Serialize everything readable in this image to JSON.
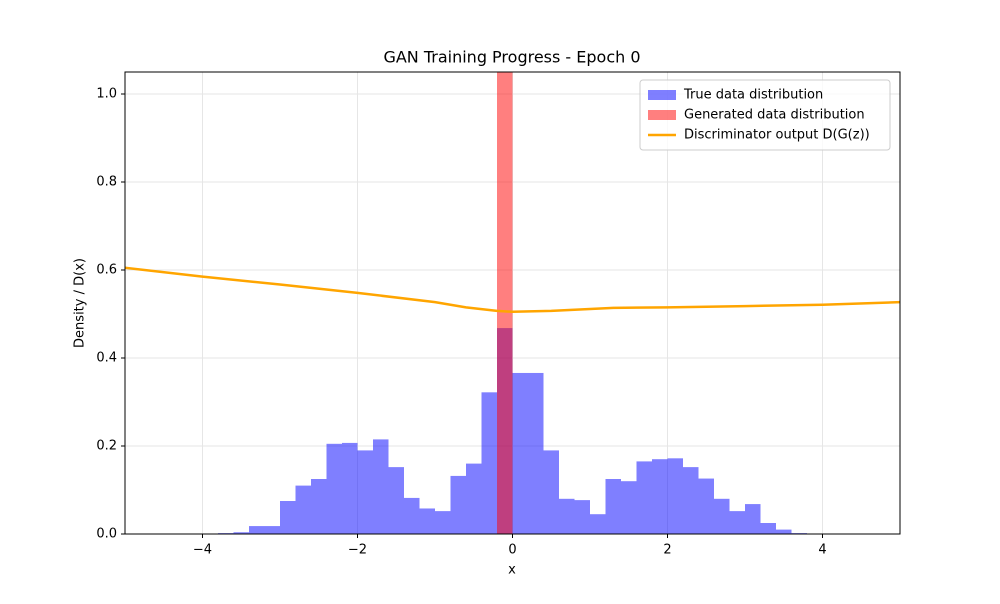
{
  "chart_data": {
    "type": "histogram",
    "title": "GAN Training Progress - Epoch 0",
    "x_label": "x",
    "y_label": "Density / D(x)",
    "xlim": [
      -5,
      5
    ],
    "ylim": [
      0,
      1.05
    ],
    "xticks": [
      {
        "value": -4,
        "label": "−4"
      },
      {
        "value": -2,
        "label": "−2"
      },
      0,
      2,
      4
    ],
    "yticks": [
      {
        "value": 0,
        "label": "0.0"
      },
      0.2,
      0.4,
      0.6,
      0.8,
      {
        "value": 1,
        "label": "1.0"
      }
    ],
    "grid": true,
    "legend": "upper right",
    "histograms": [
      {
        "name": "True data distribution",
        "color": "#0000ff",
        "bins": [
          -4.0,
          -3.8,
          -3.6,
          -3.4,
          -3.2,
          -3.0,
          -2.8,
          -2.6,
          -2.4,
          -2.2,
          -2.0,
          -1.8,
          -1.6,
          -1.4,
          -1.2,
          -1.0,
          -0.8,
          -0.6,
          -0.4,
          -0.2,
          0.0,
          0.2,
          0.4,
          0.6,
          0.8,
          1.0,
          1.2,
          1.4,
          1.6,
          1.8,
          2.0,
          2.2,
          2.4,
          2.6,
          2.8,
          3.0,
          3.2,
          3.4,
          3.6,
          3.8
        ],
        "values": [
          0.001,
          0.002,
          0.004,
          0.018,
          0.018,
          0.075,
          0.11,
          0.125,
          0.205,
          0.207,
          0.19,
          0.215,
          0.152,
          0.082,
          0.058,
          0.052,
          0.132,
          0.16,
          0.322,
          0.468,
          0.366,
          0.366,
          0.19,
          0.08,
          0.077,
          0.045,
          0.125,
          0.12,
          0.165,
          0.17,
          0.172,
          0.152,
          0.126,
          0.08,
          0.052,
          0.068,
          0.025,
          0.01,
          0.002
        ]
      },
      {
        "name": "Generated data distribution",
        "color": "#ff0000",
        "bins": [
          -0.2,
          0.0
        ],
        "values": [
          5.0
        ]
      }
    ],
    "series": [
      {
        "name": "Discriminator output D(G(z))",
        "color": "#ffa500",
        "x": [
          -5,
          -4,
          -3,
          -2,
          -1,
          -0.6,
          -0.2,
          0,
          0.5,
          1.3,
          2,
          3,
          4,
          5
        ],
        "values": [
          0.605,
          0.585,
          0.567,
          0.548,
          0.527,
          0.515,
          0.507,
          0.505,
          0.507,
          0.514,
          0.515,
          0.518,
          0.521,
          0.527
        ]
      }
    ]
  }
}
